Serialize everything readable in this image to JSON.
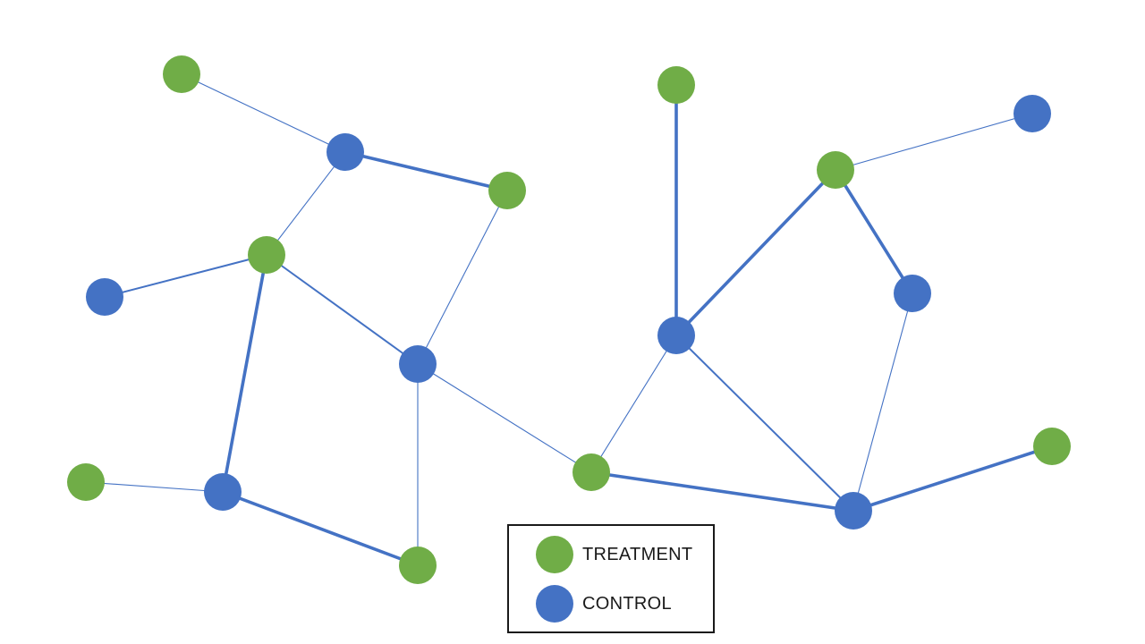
{
  "colors": {
    "treatment": "#70AD47",
    "control": "#4472C4",
    "edge": "#4472C4"
  },
  "legend": {
    "treatment_label": "TREATMENT",
    "control_label": "CONTROL"
  },
  "graph": {
    "nodes": [
      {
        "id": "n1",
        "group": "treatment"
      },
      {
        "id": "n2",
        "group": "control"
      },
      {
        "id": "n3",
        "group": "treatment"
      },
      {
        "id": "n4",
        "group": "treatment"
      },
      {
        "id": "n5",
        "group": "control"
      },
      {
        "id": "n6",
        "group": "control"
      },
      {
        "id": "n7",
        "group": "treatment"
      },
      {
        "id": "n8",
        "group": "control"
      },
      {
        "id": "n9",
        "group": "treatment"
      },
      {
        "id": "n10",
        "group": "treatment"
      },
      {
        "id": "n11",
        "group": "treatment"
      },
      {
        "id": "n12",
        "group": "control"
      },
      {
        "id": "n13",
        "group": "treatment"
      },
      {
        "id": "n14",
        "group": "control"
      },
      {
        "id": "n15",
        "group": "control"
      },
      {
        "id": "n16",
        "group": "control"
      },
      {
        "id": "n17",
        "group": "treatment"
      }
    ],
    "edges": [
      {
        "from": "n1",
        "to": "n2",
        "weight": "thin"
      },
      {
        "from": "n2",
        "to": "n3",
        "weight": "thick"
      },
      {
        "from": "n2",
        "to": "n4",
        "weight": "thin"
      },
      {
        "from": "n4",
        "to": "n5",
        "weight": "medium"
      },
      {
        "from": "n4",
        "to": "n6",
        "weight": "medium"
      },
      {
        "from": "n4",
        "to": "n8",
        "weight": "thick"
      },
      {
        "from": "n3",
        "to": "n6",
        "weight": "thin"
      },
      {
        "from": "n6",
        "to": "n9",
        "weight": "thin"
      },
      {
        "from": "n6",
        "to": "n10",
        "weight": "thin"
      },
      {
        "from": "n7",
        "to": "n8",
        "weight": "thin"
      },
      {
        "from": "n8",
        "to": "n9",
        "weight": "thick"
      },
      {
        "from": "n11",
        "to": "n14",
        "weight": "thick"
      },
      {
        "from": "n13",
        "to": "n12",
        "weight": "thin"
      },
      {
        "from": "n13",
        "to": "n14",
        "weight": "thick"
      },
      {
        "from": "n13",
        "to": "n15",
        "weight": "thick"
      },
      {
        "from": "n14",
        "to": "n10",
        "weight": "thin"
      },
      {
        "from": "n14",
        "to": "n16",
        "weight": "medium"
      },
      {
        "from": "n15",
        "to": "n16",
        "weight": "thin"
      },
      {
        "from": "n10",
        "to": "n16",
        "weight": "thick"
      },
      {
        "from": "n16",
        "to": "n17",
        "weight": "thick"
      }
    ]
  }
}
